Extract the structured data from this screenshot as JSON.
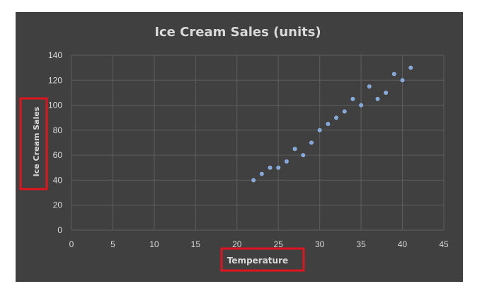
{
  "chart_data": {
    "type": "scatter",
    "title": "Ice Cream Sales (units)",
    "xlabel": "Temperature",
    "ylabel": "Ice Cream Sales",
    "xlim": [
      0,
      45
    ],
    "ylim": [
      0,
      140
    ],
    "x_ticks": [
      0,
      5,
      10,
      15,
      20,
      25,
      30,
      35,
      40,
      45
    ],
    "y_ticks": [
      0,
      20,
      40,
      60,
      80,
      100,
      120,
      140
    ],
    "grid": true,
    "legend": "none",
    "point_color": "#7ea6e0",
    "background_color": "#404040",
    "highlight_color": "#e0141e",
    "points": [
      {
        "x": 22,
        "y": 40
      },
      {
        "x": 23,
        "y": 45
      },
      {
        "x": 24,
        "y": 50
      },
      {
        "x": 25,
        "y": 50
      },
      {
        "x": 26,
        "y": 55
      },
      {
        "x": 27,
        "y": 65
      },
      {
        "x": 28,
        "y": 60
      },
      {
        "x": 29,
        "y": 70
      },
      {
        "x": 30,
        "y": 80
      },
      {
        "x": 31,
        "y": 85
      },
      {
        "x": 32,
        "y": 90
      },
      {
        "x": 33,
        "y": 95
      },
      {
        "x": 34,
        "y": 105
      },
      {
        "x": 35,
        "y": 100
      },
      {
        "x": 36,
        "y": 115
      },
      {
        "x": 37,
        "y": 105
      },
      {
        "x": 38,
        "y": 110
      },
      {
        "x": 39,
        "y": 125
      },
      {
        "x": 40,
        "y": 120
      },
      {
        "x": 41,
        "y": 130
      }
    ]
  }
}
